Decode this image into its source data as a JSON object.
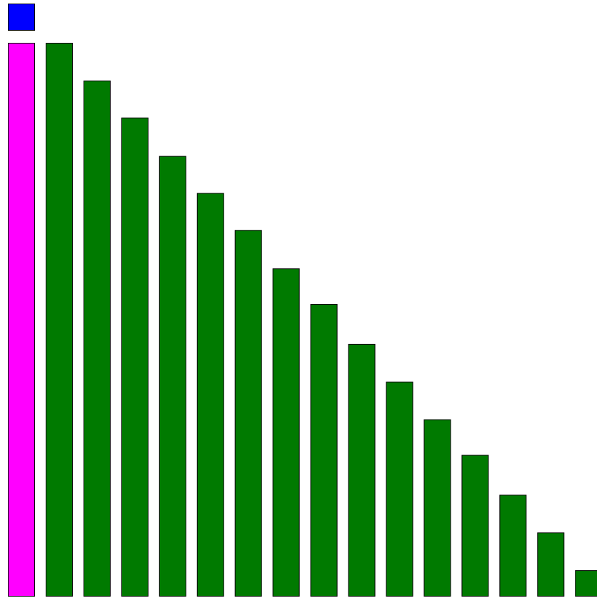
{
  "chart_data": {
    "type": "bar",
    "title": "",
    "xlabel": "",
    "ylabel": "",
    "grid": false,
    "legend": "none",
    "indicator": {
      "shape": "square",
      "color": "#0000ff"
    },
    "colors": {
      "highlight": "#ff00ff",
      "bars": "#007a00",
      "outline": "#000000",
      "background": "#ffffff"
    },
    "ylim": [
      0,
      780
    ],
    "series": [
      {
        "values": [
          778,
          778,
          725,
          673,
          619,
          567,
          515,
          461,
          411,
          355,
          302,
          249,
          199,
          143,
          90,
          37
        ],
        "highlight_index": 0
      }
    ]
  }
}
